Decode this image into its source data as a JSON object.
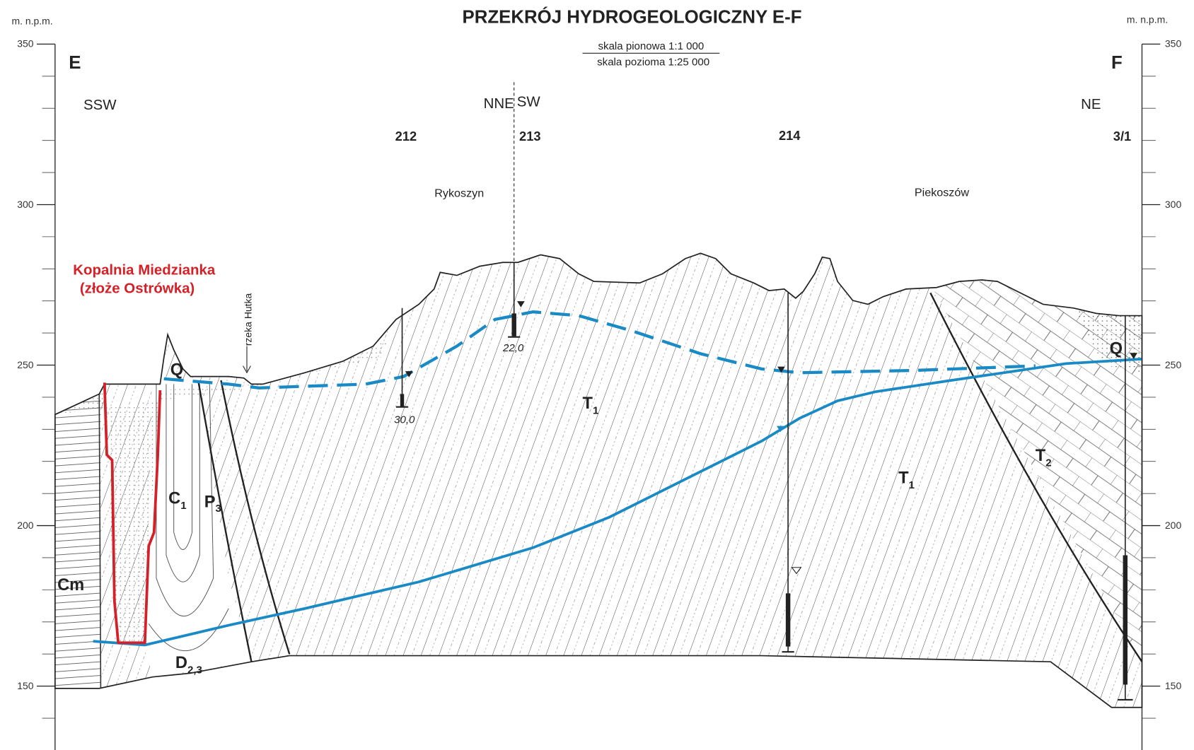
{
  "header": {
    "title": "PRZEKRÓJ HYDROGEOLOGICZNY E-F",
    "scale_vertical": "skala pionowa 1:1 000",
    "scale_horizontal": "skala pozioma 1:25 000"
  },
  "axes": {
    "label_left": "m. n.p.m.",
    "label_right": "m. n.p.m.",
    "ticks": [
      350,
      300,
      250,
      200,
      150
    ]
  },
  "ends": {
    "left": "E",
    "right": "F"
  },
  "directions": [
    "SSW",
    "NNE",
    "SW",
    "NE"
  ],
  "wells": [
    {
      "id": "212",
      "depth": "30,0"
    },
    {
      "id": "213",
      "depth": "22,0"
    },
    {
      "id": "214"
    },
    {
      "id": "3/1"
    }
  ],
  "places": [
    "Rykoszyn",
    "Piekoszów"
  ],
  "mine": {
    "name": "Kopalnia Miedzianka",
    "deposit": "(złoże Ostrówka)"
  },
  "river": "rzeka Hutka",
  "units": [
    {
      "symbol": "Q"
    },
    {
      "symbol": "Q"
    },
    {
      "symbol": "T",
      "sub": "1"
    },
    {
      "symbol": "T",
      "sub": "1"
    },
    {
      "symbol": "T",
      "sub": "2"
    },
    {
      "symbol": "C",
      "sub": "1"
    },
    {
      "symbol": "P",
      "sub": "3"
    },
    {
      "symbol": "D",
      "sub": "2,3"
    },
    {
      "symbol": "Cm"
    }
  ]
}
